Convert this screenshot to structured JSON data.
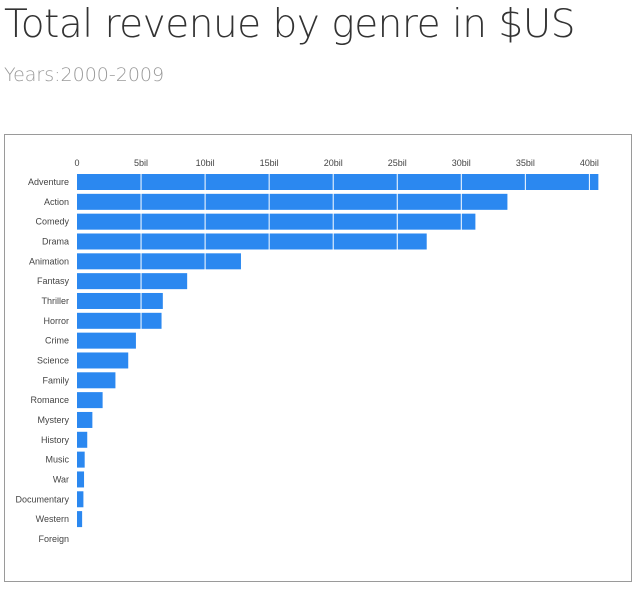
{
  "header": {
    "title": "Total revenue by genre in $US",
    "subtitle": "Years:2000-2009"
  },
  "chart_data": {
    "type": "bar",
    "orientation": "horizontal",
    "title": "Total revenue by genre in $US",
    "subtitle": "Years:2000-2009",
    "xlabel": "",
    "ylabel": "",
    "categories": [
      "Adventure",
      "Action",
      "Comedy",
      "Drama",
      "Animation",
      "Fantasy",
      "Thriller",
      "Horror",
      "Crime",
      "Science",
      "Family",
      "Romance",
      "Mystery",
      "History",
      "Music",
      "War",
      "Documentary",
      "Western",
      "Foreign"
    ],
    "values": [
      40.7,
      33.6,
      31.1,
      27.3,
      12.8,
      8.6,
      6.7,
      6.6,
      4.6,
      4.0,
      3.0,
      2.0,
      1.2,
      0.8,
      0.6,
      0.55,
      0.5,
      0.4,
      0.0
    ],
    "value_unit": "bil",
    "xlim": [
      0,
      40
    ],
    "ticks": [
      0,
      5,
      10,
      15,
      20,
      25,
      30,
      35,
      40
    ],
    "tick_labels": [
      "0",
      "5bil",
      "10bil",
      "15bil",
      "20bil",
      "25bil",
      "30bil",
      "35bil",
      "40bil"
    ],
    "grid": true,
    "axis_position": "top",
    "legend": "none",
    "colors": {
      "bar": "#2b88f0",
      "grid": "#ffffff",
      "frame": "#9a9a9a"
    }
  }
}
